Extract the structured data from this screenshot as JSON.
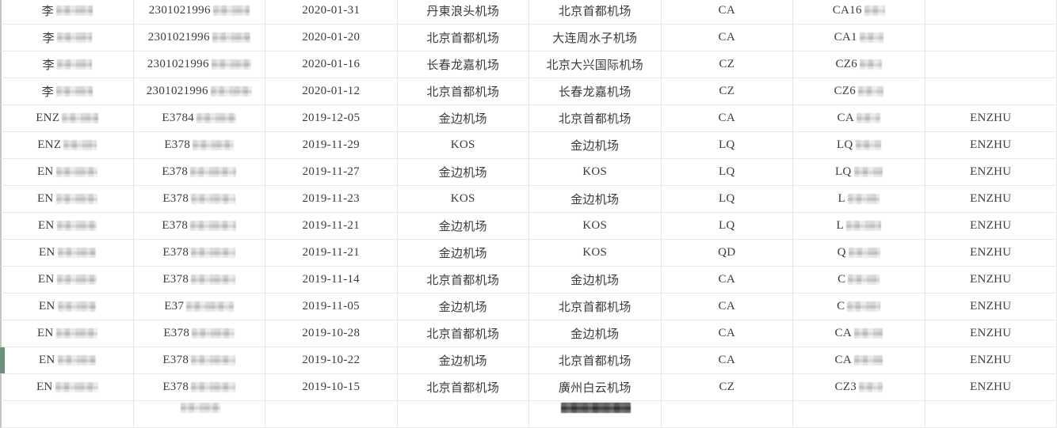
{
  "app": {
    "description_label": "flight-records-table",
    "accent_marker_color": "#6a9379",
    "grid_line_color": "#e6e6e6",
    "row_line_color": "#e9e9e9",
    "left_edge_color": "#c2c2c2",
    "text_color": "#3b3b3b",
    "redaction_style": "pixelated-mosaic"
  },
  "table": {
    "column_keys": [
      "passenger_name",
      "id_number",
      "flight_date",
      "departure_airport",
      "arrival_airport",
      "airline_code",
      "flight_number",
      "name_pinyin"
    ],
    "rows": [
      {
        "cells": {
          "passenger_name": {
            "text": "李",
            "mask": 46
          },
          "id_number": {
            "text": "2301021996",
            "mask": 46
          },
          "flight_date": {
            "text": "2020-01-31"
          },
          "departure_airport": {
            "text": "丹東浪头机场"
          },
          "arrival_airport": {
            "text": "北京首都机场"
          },
          "airline_code": {
            "text": "CA"
          },
          "flight_number": {
            "text": "CA16",
            "mask": 26
          },
          "name_pinyin": {
            "text": ""
          }
        }
      },
      {
        "cells": {
          "passenger_name": {
            "text": "李",
            "mask": 44
          },
          "id_number": {
            "text": "2301021996",
            "mask": 48
          },
          "flight_date": {
            "text": "2020-01-20"
          },
          "departure_airport": {
            "text": "北京首都机场"
          },
          "arrival_airport": {
            "text": "大连周水子机场"
          },
          "airline_code": {
            "text": "CA"
          },
          "flight_number": {
            "text": "CA1",
            "mask": 30
          },
          "name_pinyin": {
            "text": ""
          }
        }
      },
      {
        "cells": {
          "passenger_name": {
            "text": "李",
            "mask": 44
          },
          "id_number": {
            "text": "2301021996",
            "mask": 50
          },
          "flight_date": {
            "text": "2020-01-16"
          },
          "departure_airport": {
            "text": "长春龙嘉机场"
          },
          "arrival_airport": {
            "text": "北京大兴国际机场"
          },
          "airline_code": {
            "text": "CZ"
          },
          "flight_number": {
            "text": "CZ6",
            "mask": 28
          },
          "name_pinyin": {
            "text": ""
          }
        }
      },
      {
        "cells": {
          "passenger_name": {
            "text": "李",
            "mask": 46
          },
          "id_number": {
            "text": "2301021996",
            "mask": 52
          },
          "flight_date": {
            "text": "2020-01-12"
          },
          "departure_airport": {
            "text": "北京首都机场"
          },
          "arrival_airport": {
            "text": "长春龙嘉机场"
          },
          "airline_code": {
            "text": "CZ"
          },
          "flight_number": {
            "text": "CZ6",
            "mask": 32
          },
          "name_pinyin": {
            "text": ""
          }
        }
      },
      {
        "cells": {
          "passenger_name": {
            "text": "ENZ",
            "mask": 46
          },
          "id_number": {
            "text": "E3784",
            "mask": 50
          },
          "flight_date": {
            "text": "2019-12-05"
          },
          "departure_airport": {
            "text": "金边机场"
          },
          "arrival_airport": {
            "text": "北京首都机场"
          },
          "airline_code": {
            "text": "CA"
          },
          "flight_number": {
            "text": "CA",
            "mask": 30
          },
          "name_pinyin": {
            "text": "ENZHU"
          }
        }
      },
      {
        "cells": {
          "passenger_name": {
            "text": "ENZ",
            "mask": 42
          },
          "id_number": {
            "text": "E378",
            "mask": 52
          },
          "flight_date": {
            "text": "2019-11-29"
          },
          "departure_airport": {
            "text": "KOS"
          },
          "arrival_airport": {
            "text": "金边机场"
          },
          "airline_code": {
            "text": "LQ"
          },
          "flight_number": {
            "text": "LQ",
            "mask": 32
          },
          "name_pinyin": {
            "text": "ENZHU"
          }
        }
      },
      {
        "cells": {
          "passenger_name": {
            "text": "EN",
            "mask": 52
          },
          "id_number": {
            "text": "E378",
            "mask": 58
          },
          "flight_date": {
            "text": "2019-11-27"
          },
          "departure_airport": {
            "text": "金边机场"
          },
          "arrival_airport": {
            "text": "KOS"
          },
          "airline_code": {
            "text": "LQ"
          },
          "flight_number": {
            "text": "LQ",
            "mask": 36
          },
          "name_pinyin": {
            "text": "ENZHU"
          }
        }
      },
      {
        "cells": {
          "passenger_name": {
            "text": "EN",
            "mask": 52
          },
          "id_number": {
            "text": "E378",
            "mask": 56
          },
          "flight_date": {
            "text": "2019-11-23"
          },
          "departure_airport": {
            "text": "KOS"
          },
          "arrival_airport": {
            "text": "金边机场"
          },
          "airline_code": {
            "text": "LQ"
          },
          "flight_number": {
            "text": "L",
            "mask": 40
          },
          "name_pinyin": {
            "text": "ENZHU"
          }
        }
      },
      {
        "cells": {
          "passenger_name": {
            "text": "EN",
            "mask": 50
          },
          "id_number": {
            "text": "E378",
            "mask": 58
          },
          "flight_date": {
            "text": "2019-11-21"
          },
          "departure_airport": {
            "text": "金边机场"
          },
          "arrival_airport": {
            "text": "KOS"
          },
          "airline_code": {
            "text": "LQ"
          },
          "flight_number": {
            "text": "L",
            "mask": 44
          },
          "name_pinyin": {
            "text": "ENZHU"
          }
        }
      },
      {
        "cells": {
          "passenger_name": {
            "text": "EN",
            "mask": 48
          },
          "id_number": {
            "text": "E378",
            "mask": 56
          },
          "flight_date": {
            "text": "2019-11-21"
          },
          "departure_airport": {
            "text": "金边机场"
          },
          "arrival_airport": {
            "text": "KOS"
          },
          "airline_code": {
            "text": "QD"
          },
          "flight_number": {
            "text": "Q",
            "mask": 40
          },
          "name_pinyin": {
            "text": "ENZHU"
          }
        }
      },
      {
        "cells": {
          "passenger_name": {
            "text": "EN",
            "mask": 50
          },
          "id_number": {
            "text": "E378",
            "mask": 56
          },
          "flight_date": {
            "text": "2019-11-14"
          },
          "departure_airport": {
            "text": "北京首都机场"
          },
          "arrival_airport": {
            "text": "金边机场"
          },
          "airline_code": {
            "text": "CA"
          },
          "flight_number": {
            "text": "C",
            "mask": 40
          },
          "name_pinyin": {
            "text": "ENZHU"
          }
        }
      },
      {
        "cells": {
          "passenger_name": {
            "text": "EN",
            "mask": 48
          },
          "id_number": {
            "text": "E37",
            "mask": 60
          },
          "flight_date": {
            "text": "2019-11-05"
          },
          "departure_airport": {
            "text": "金边机场"
          },
          "arrival_airport": {
            "text": "北京首都机场"
          },
          "airline_code": {
            "text": "CA"
          },
          "flight_number": {
            "text": "C",
            "mask": 42
          },
          "name_pinyin": {
            "text": "ENZHU"
          }
        }
      },
      {
        "cells": {
          "passenger_name": {
            "text": "EN",
            "mask": 52
          },
          "id_number": {
            "text": "E378",
            "mask": 54
          },
          "flight_date": {
            "text": "2019-10-28"
          },
          "departure_airport": {
            "text": "北京首都机场"
          },
          "arrival_airport": {
            "text": "金边机场"
          },
          "airline_code": {
            "text": "CA"
          },
          "flight_number": {
            "text": "CA",
            "mask": 36
          },
          "name_pinyin": {
            "text": "ENZHU"
          }
        }
      },
      {
        "marker": true,
        "cells": {
          "passenger_name": {
            "text": "EN",
            "mask": 48
          },
          "id_number": {
            "text": "E378",
            "mask": 56
          },
          "flight_date": {
            "text": "2019-10-22"
          },
          "departure_airport": {
            "text": "金边机场"
          },
          "arrival_airport": {
            "text": "北京首都机场"
          },
          "airline_code": {
            "text": "CA"
          },
          "flight_number": {
            "text": "CA",
            "mask": 36
          },
          "name_pinyin": {
            "text": "ENZHU"
          }
        }
      },
      {
        "cells": {
          "passenger_name": {
            "text": "EN",
            "mask": 54
          },
          "id_number": {
            "text": "E378",
            "mask": 56
          },
          "flight_date": {
            "text": "2019-10-15"
          },
          "departure_airport": {
            "text": "北京首都机场"
          },
          "arrival_airport": {
            "text": "廣州白云机场"
          },
          "airline_code": {
            "text": "CZ"
          },
          "flight_number": {
            "text": "CZ3",
            "mask": 30
          },
          "name_pinyin": {
            "text": "ENZHU"
          }
        }
      },
      {
        "partial": true,
        "cells": {
          "passenger_name": {
            "text": ""
          },
          "id_number": {
            "text": "",
            "mask": 50
          },
          "flight_date": {
            "text": ""
          },
          "departure_airport": {
            "text": ""
          },
          "arrival_airport": {
            "text": "",
            "mask": 88,
            "mask_dark": true
          },
          "airline_code": {
            "text": ""
          },
          "flight_number": {
            "text": ""
          },
          "name_pinyin": {
            "text": ""
          }
        }
      }
    ]
  }
}
